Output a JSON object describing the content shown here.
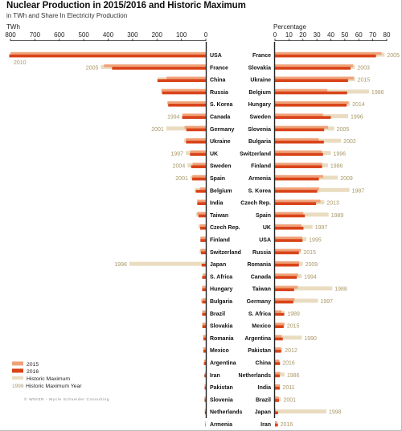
{
  "title": "Nuclear Production in 2015/2016 and Historic Maximum",
  "subtitle": "in TWh and Share In Electricity Production",
  "credit": "© WNISR - Mycle Schneider Consulting",
  "colors": {
    "v2015": "#f0a178",
    "v2016": "#d9441a",
    "historic": "#eadcc0",
    "year_text": "#a89766",
    "axis": "#222222"
  },
  "legend": {
    "items": [
      {
        "key": "v2015",
        "label": "2015"
      },
      {
        "key": "v2016",
        "label": "2016"
      },
      {
        "key": "historic",
        "label": "Historic Maximum"
      },
      {
        "key": "year",
        "label": "Historic Maximum Year",
        "marker": "1998"
      }
    ]
  },
  "chart_data": [
    {
      "type": "bar",
      "ylabel": "TWh",
      "xlim": [
        800,
        0
      ],
      "ticks": [
        800,
        700,
        600,
        500,
        400,
        300,
        200,
        100,
        0
      ],
      "categories": [
        "USA",
        "France",
        "China",
        "Russia",
        "S. Korea",
        "Canada",
        "Germany",
        "Ukraine",
        "UK",
        "Sweden",
        "Spain",
        "Belgium",
        "India",
        "Taiwan",
        "Czech Rep.",
        "Finland",
        "Switzerland",
        "Japan",
        "S. Africa",
        "Hungary",
        "Bulgaria",
        "Brazil",
        "Slovakia",
        "Romania",
        "Mexico",
        "Argentina",
        "Iran",
        "Pakistan",
        "Slovenia",
        "Netherlands",
        "Armenia"
      ],
      "series": [
        {
          "name": "2015",
          "values": [
            798,
            417,
            161,
            182,
            157,
            96,
            87,
            82,
            64,
            54,
            55,
            24,
            35,
            35,
            25,
            22,
            22,
            4,
            11,
            15,
            14,
            14,
            14,
            11,
            11,
            7,
            3,
            5,
            5,
            4,
            2
          ]
        },
        {
          "name": "2016",
          "values": [
            805,
            384,
            198,
            179,
            154,
            97,
            80,
            81,
            65,
            60,
            56,
            41,
            35,
            30,
            23,
            22,
            20,
            17,
            15,
            15,
            15,
            15,
            14,
            10,
            10,
            8,
            6,
            5,
            5,
            4,
            2
          ]
        },
        {
          "name": "Historic Maximum",
          "values": [
            805,
            430,
            198,
            182,
            157,
            97,
            162,
            89,
            82,
            75,
            63,
            46,
            35,
            40,
            30,
            23,
            26,
            313,
            15,
            15,
            20,
            15,
            15,
            11,
            11,
            8,
            6,
            5,
            6,
            4,
            2
          ]
        }
      ],
      "historic_year": [
        "2010",
        "2005",
        "",
        "",
        "",
        "1994",
        "2001",
        "",
        "1997",
        "2004",
        "2001",
        "",
        "",
        "",
        "",
        "",
        "",
        "1998",
        "",
        "",
        "",
        "",
        "",
        "",
        "",
        "",
        "",
        "",
        "",
        "",
        ""
      ]
    },
    {
      "type": "bar",
      "ylabel": "Percentage",
      "xlim": [
        0,
        80
      ],
      "ticks": [
        0,
        10,
        20,
        30,
        40,
        50,
        60,
        70,
        80
      ],
      "categories": [
        "France",
        "Slovakia",
        "Ukraine",
        "Belgium",
        "Hungary",
        "Sweden",
        "Slovenia",
        "Bulgaria",
        "Switzerland",
        "Finland",
        "Armenia",
        "S. Korea",
        "Czech Rep.",
        "Spain",
        "UK",
        "USA",
        "Russia",
        "Romania",
        "Canada",
        "Taiwan",
        "Germany",
        "S. Africa",
        "Mexico",
        "Argentina",
        "Pakistan",
        "China",
        "Netherlands",
        "India",
        "Brazil",
        "Japan",
        "Iran"
      ],
      "series": [
        {
          "name": "2015",
          "values": [
            76.3,
            55.9,
            56.5,
            37.5,
            52.7,
            34.3,
            38.0,
            31.3,
            33.5,
            33.7,
            34.5,
            31.7,
            32.5,
            20.3,
            18.9,
            19.5,
            18.6,
            17.3,
            16.6,
            16.3,
            14.1,
            4.7,
            6.8,
            4.8,
            4.4,
            3.0,
            3.7,
            3.5,
            2.8,
            0.5,
            1.3
          ]
        },
        {
          "name": "2016",
          "values": [
            72.3,
            54.1,
            52.3,
            51.7,
            51.3,
            40.0,
            35.2,
            35.0,
            34.4,
            33.7,
            31.4,
            30.3,
            29.4,
            21.4,
            20.4,
            19.7,
            17.1,
            17.1,
            15.6,
            13.7,
            13.1,
            6.6,
            6.2,
            5.6,
            4.4,
            3.6,
            3.4,
            3.4,
            2.9,
            2.2,
            2.1
          ]
        },
        {
          "name": "Historic Maximum",
          "values": [
            78.5,
            57.2,
            57.3,
            67.3,
            53.6,
            52.4,
            42.4,
            47.3,
            40.0,
            37.9,
            45.0,
            53.3,
            35.3,
            38.4,
            26.9,
            22.5,
            18.6,
            19.9,
            19.1,
            41.0,
            30.8,
            7.1,
            6.8,
            19.2,
            5.3,
            3.6,
            6.8,
            3.7,
            4.3,
            36.8,
            2.1
          ]
        }
      ],
      "historic_year": [
        "2005",
        "2003",
        "2015",
        "1986",
        "2014",
        "1996",
        "2005",
        "2002",
        "1996",
        "1986",
        "2009",
        "1987",
        "2013",
        "1989",
        "1997",
        "1995",
        "2015",
        "2009",
        "1994",
        "1988",
        "1997",
        "1989",
        "2015",
        "1990",
        "2012",
        "2016",
        "1986",
        "2011",
        "2001",
        "1998",
        "2016"
      ]
    }
  ]
}
